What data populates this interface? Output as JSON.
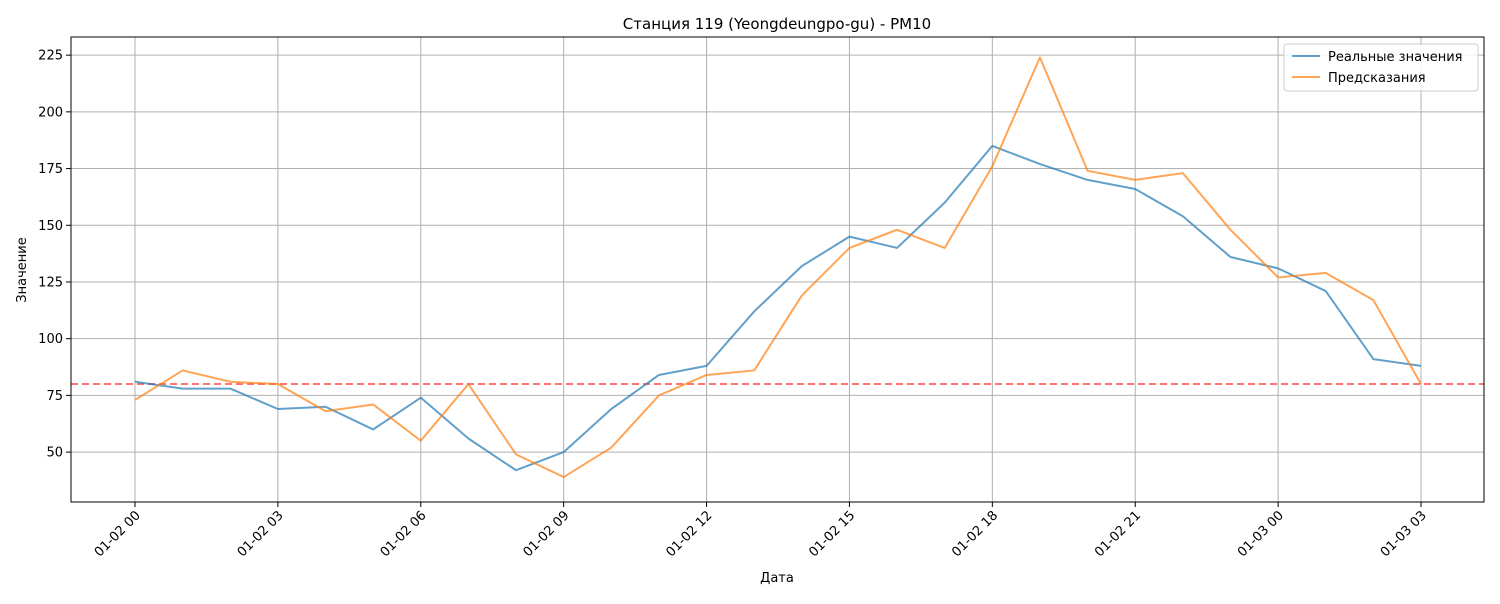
{
  "chart_data": {
    "type": "line",
    "title": "Станция 119 (Yeongdeungpo-gu) - PM10",
    "xlabel": "Дата",
    "ylabel": "Значение",
    "x": [
      "2024-01-02 00:00",
      "2024-01-02 01:00",
      "2024-01-02 02:00",
      "2024-01-02 03:00",
      "2024-01-02 04:00",
      "2024-01-02 05:00",
      "2024-01-02 06:00",
      "2024-01-02 07:00",
      "2024-01-02 08:00",
      "2024-01-02 09:00",
      "2024-01-02 10:00",
      "2024-01-02 11:00",
      "2024-01-02 12:00",
      "2024-01-02 13:00",
      "2024-01-02 14:00",
      "2024-01-02 15:00",
      "2024-01-02 16:00",
      "2024-01-02 17:00",
      "2024-01-02 18:00",
      "2024-01-02 19:00",
      "2024-01-02 20:00",
      "2024-01-02 21:00",
      "2024-01-02 22:00",
      "2024-01-02 23:00",
      "2024-01-03 00:00",
      "2024-01-03 01:00",
      "2024-01-03 02:00",
      "2024-01-03 03:00"
    ],
    "x_ticks": [
      "01-02 00",
      "01-02 03",
      "01-02 06",
      "01-02 09",
      "01-02 12",
      "01-02 15",
      "01-02 18",
      "01-02 21",
      "01-03 00",
      "01-03 03"
    ],
    "y_ticks": [
      50,
      75,
      100,
      125,
      150,
      175,
      200,
      225
    ],
    "ylim": [
      28,
      233
    ],
    "series": [
      {
        "name": "Реальные значения",
        "color": "#1f77b4",
        "values": [
          81,
          78,
          78,
          69,
          70,
          60,
          74,
          56,
          42,
          50,
          69,
          84,
          88,
          112,
          132,
          145,
          140,
          160,
          185,
          177,
          170,
          166,
          154,
          136,
          131,
          121,
          91,
          88
        ]
      },
      {
        "name": "Предсказания",
        "color": "#ff7f0e",
        "values": [
          73,
          86,
          81,
          80,
          68,
          71,
          55,
          80,
          49,
          39,
          52,
          75,
          84,
          86,
          119,
          140,
          148,
          140,
          176,
          224,
          174,
          170,
          173,
          148,
          127,
          129,
          117,
          80
        ]
      }
    ],
    "threshold": {
      "value": 80,
      "color": "#ff0000",
      "style": "dashed"
    },
    "grid": true,
    "legend_position": "top-right"
  }
}
